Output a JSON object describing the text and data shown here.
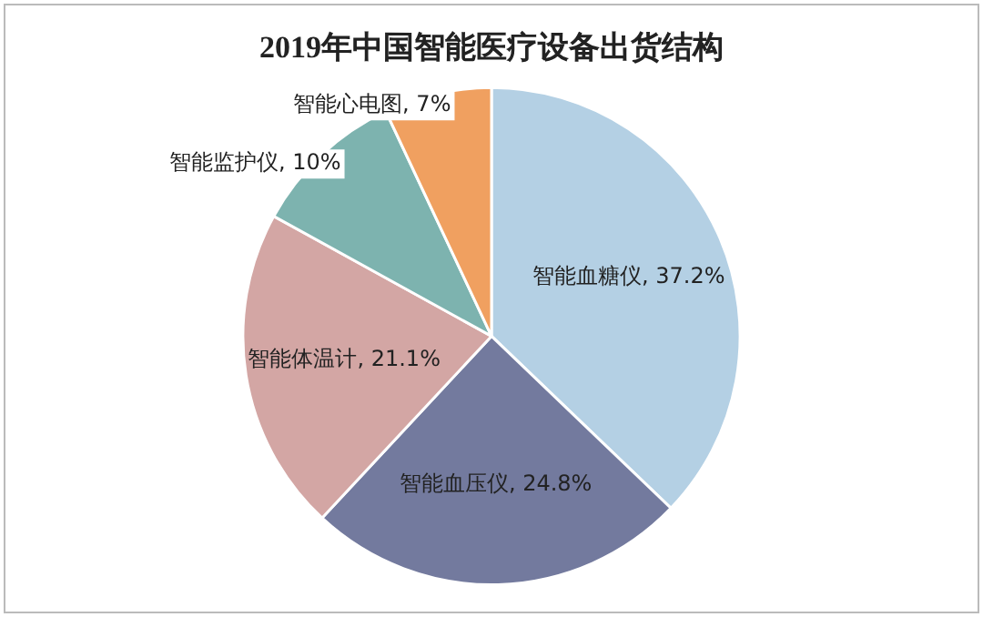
{
  "chart_data": {
    "type": "pie",
    "title": "2019年中国智能医疗设备出货结构",
    "categories": [
      "智能血糖仪",
      "智能血压仪",
      "智能体温计",
      "智能监护仪",
      "智能心电图"
    ],
    "values": [
      37.2,
      24.8,
      21.1,
      10,
      7
    ],
    "value_labels": [
      "37.2%",
      "24.8%",
      "21.1%",
      "10%",
      "7%"
    ],
    "colors": [
      "#b4d0e4",
      "#737a9e",
      "#d3a6a4",
      "#7db3af",
      "#f0a060"
    ],
    "legend": false
  }
}
